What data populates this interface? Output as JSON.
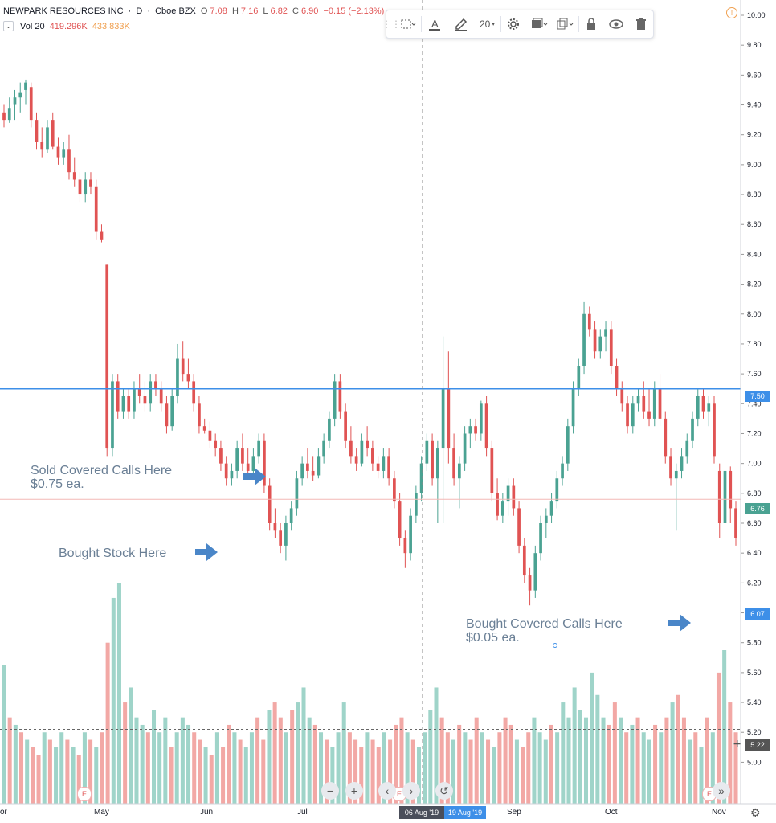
{
  "header": {
    "symbol": "NEWPARK RESOURCES INC",
    "interval": "D",
    "exchange": "Cboe BZX",
    "open_label": "O",
    "open": "7.08",
    "high_label": "H",
    "high": "7.16",
    "low_label": "L",
    "low": "6.82",
    "close_label": "C",
    "close": "6.90",
    "change": "−0.15 (−2.13%)"
  },
  "volume_legend": {
    "label": "Vol 20",
    "value": "419.296K",
    "ma_value": "433.833K"
  },
  "toolbar": {
    "font_size": "20"
  },
  "annotations": {
    "sold_line1": "Sold Covered Calls Here",
    "sold_line2": "$0.75 ea.",
    "bought_stock": "Bought Stock Here",
    "bought_calls_line1": "Bought Covered Calls Here",
    "bought_calls_line2": "$0.05 ea."
  },
  "price_labels": {
    "hline": "7.50",
    "last": "6.76",
    "cursor": "6.07",
    "volume_line": "5.22"
  },
  "x_axis": {
    "labels": [
      "or",
      "May",
      "Jun",
      "Jul",
      "Sep",
      "Oct",
      "Nov"
    ],
    "crosshair_date": "06 Aug '19",
    "range_end_date": "19 Aug '19"
  },
  "nav": {
    "zoom_out": "−",
    "zoom_in": "+",
    "scroll_left": "‹",
    "scroll_right": "›",
    "reset": "↺",
    "go_latest": "»"
  },
  "earnings_badge": "E",
  "colors": {
    "up": "#4aa292",
    "down": "#e05353",
    "up_vol": "#9fd4c9",
    "down_vol": "#f2a8a5",
    "hline": "#3d8fe8",
    "accent": "#2962ff"
  },
  "chart_data": {
    "type": "candlestick",
    "symbol": "NEWPARK RESOURCES INC",
    "y_axis": {
      "min": 4.9,
      "max": 10.0,
      "ticks": [
        "10.00",
        "9.80",
        "9.60",
        "9.40",
        "9.20",
        "9.00",
        "8.80",
        "8.60",
        "8.40",
        "8.20",
        "8.00",
        "7.80",
        "7.60",
        "7.40",
        "7.20",
        "7.00",
        "6.80",
        "6.60",
        "6.40",
        "6.20",
        "6.00",
        "5.80",
        "5.60",
        "5.40",
        "5.20",
        "5.00"
      ]
    },
    "horizontal_line": 7.5,
    "last_price": 6.76,
    "candles": [
      [
        9.35,
        9.4,
        9.25,
        9.3
      ],
      [
        9.3,
        9.45,
        9.28,
        9.38
      ],
      [
        9.4,
        9.5,
        9.3,
        9.45
      ],
      [
        9.45,
        9.55,
        9.35,
        9.48
      ],
      [
        9.5,
        9.57,
        9.4,
        9.55
      ],
      [
        9.52,
        9.55,
        9.25,
        9.3
      ],
      [
        9.3,
        9.35,
        9.1,
        9.15
      ],
      [
        9.15,
        9.25,
        9.05,
        9.1
      ],
      [
        9.1,
        9.3,
        9.08,
        9.25
      ],
      [
        9.3,
        9.35,
        9.1,
        9.12
      ],
      [
        9.12,
        9.18,
        9.0,
        9.05
      ],
      [
        9.05,
        9.15,
        9.0,
        9.1
      ],
      [
        9.1,
        9.2,
        8.9,
        8.95
      ],
      [
        8.95,
        9.05,
        8.85,
        8.9
      ],
      [
        8.9,
        8.95,
        8.75,
        8.8
      ],
      [
        8.8,
        8.95,
        8.75,
        8.9
      ],
      [
        8.9,
        8.95,
        8.8,
        8.85
      ],
      [
        8.85,
        8.9,
        8.5,
        8.55
      ],
      [
        8.55,
        8.6,
        8.48,
        8.5
      ],
      [
        8.33,
        8.33,
        7.05,
        7.1
      ],
      [
        7.1,
        7.6,
        7.05,
        7.55
      ],
      [
        7.55,
        7.6,
        7.3,
        7.35
      ],
      [
        7.35,
        7.5,
        7.3,
        7.45
      ],
      [
        7.45,
        7.5,
        7.3,
        7.35
      ],
      [
        7.35,
        7.55,
        7.3,
        7.5
      ],
      [
        7.5,
        7.6,
        7.4,
        7.45
      ],
      [
        7.45,
        7.55,
        7.35,
        7.4
      ],
      [
        7.4,
        7.6,
        7.35,
        7.55
      ],
      [
        7.55,
        7.6,
        7.45,
        7.5
      ],
      [
        7.5,
        7.55,
        7.35,
        7.4
      ],
      [
        7.4,
        7.45,
        7.2,
        7.25
      ],
      [
        7.25,
        7.5,
        7.22,
        7.45
      ],
      [
        7.45,
        7.8,
        7.4,
        7.7
      ],
      [
        7.7,
        7.82,
        7.55,
        7.6
      ],
      [
        7.6,
        7.7,
        7.5,
        7.55
      ],
      [
        7.55,
        7.6,
        7.35,
        7.4
      ],
      [
        7.4,
        7.45,
        7.2,
        7.25
      ],
      [
        7.25,
        7.3,
        7.2,
        7.22
      ],
      [
        7.22,
        7.28,
        7.1,
        7.15
      ],
      [
        7.15,
        7.2,
        7.05,
        7.1
      ],
      [
        7.1,
        7.15,
        6.95,
        7.0
      ],
      [
        7.0,
        7.05,
        6.85,
        6.9
      ],
      [
        6.9,
        7.0,
        6.85,
        6.95
      ],
      [
        6.95,
        7.15,
        6.9,
        7.1
      ],
      [
        7.1,
        7.2,
        6.95,
        7.0
      ],
      [
        7.0,
        7.1,
        6.9,
        6.95
      ],
      [
        6.95,
        7.1,
        6.9,
        7.05
      ],
      [
        7.05,
        7.2,
        7.0,
        7.15
      ],
      [
        7.15,
        7.2,
        6.8,
        6.85
      ],
      [
        6.85,
        6.9,
        6.55,
        6.6
      ],
      [
        6.6,
        6.7,
        6.5,
        6.55
      ],
      [
        6.55,
        6.6,
        6.4,
        6.45
      ],
      [
        6.45,
        6.65,
        6.35,
        6.6
      ],
      [
        6.6,
        6.75,
        6.55,
        6.7
      ],
      [
        6.7,
        6.95,
        6.65,
        6.9
      ],
      [
        6.9,
        7.05,
        6.85,
        7.0
      ],
      [
        7.0,
        7.1,
        6.9,
        6.95
      ],
      [
        6.95,
        7.05,
        6.88,
        6.92
      ],
      [
        6.92,
        7.1,
        6.9,
        7.05
      ],
      [
        7.05,
        7.2,
        7.0,
        7.15
      ],
      [
        7.15,
        7.35,
        7.1,
        7.3
      ],
      [
        7.3,
        7.6,
        7.25,
        7.55
      ],
      [
        7.55,
        7.6,
        7.3,
        7.35
      ],
      [
        7.35,
        7.4,
        7.1,
        7.15
      ],
      [
        7.15,
        7.25,
        7.0,
        7.05
      ],
      [
        7.05,
        7.1,
        6.95,
        7.0
      ],
      [
        7.0,
        7.2,
        6.98,
        7.15
      ],
      [
        7.15,
        7.25,
        7.05,
        7.1
      ],
      [
        7.1,
        7.15,
        6.95,
        7.0
      ],
      [
        7.0,
        7.05,
        6.9,
        6.95
      ],
      [
        6.95,
        7.1,
        6.9,
        7.05
      ],
      [
        7.05,
        7.1,
        6.85,
        6.9
      ],
      [
        6.9,
        6.95,
        6.7,
        6.75
      ],
      [
        6.75,
        6.8,
        6.45,
        6.5
      ],
      [
        6.5,
        6.55,
        6.3,
        6.4
      ],
      [
        6.4,
        6.7,
        6.35,
        6.65
      ],
      [
        6.65,
        6.85,
        6.6,
        6.8
      ],
      [
        6.8,
        7.05,
        6.75,
        7.0
      ],
      [
        7.0,
        7.2,
        6.95,
        7.15
      ],
      [
        7.15,
        7.2,
        6.85,
        6.9
      ],
      [
        6.9,
        7.15,
        6.6,
        7.1
      ],
      [
        7.1,
        7.85,
        6.6,
        7.5
      ],
      [
        7.5,
        7.75,
        7.0,
        7.1
      ],
      [
        7.1,
        7.2,
        6.85,
        6.9
      ],
      [
        6.9,
        7.05,
        6.7,
        7.0
      ],
      [
        7.0,
        7.25,
        6.95,
        7.2
      ],
      [
        7.2,
        7.3,
        7.1,
        7.25
      ],
      [
        7.25,
        7.3,
        7.15,
        7.2
      ],
      [
        7.2,
        7.42,
        7.15,
        7.4
      ],
      [
        7.4,
        7.45,
        7.05,
        7.1
      ],
      [
        7.1,
        7.15,
        6.75,
        6.8
      ],
      [
        6.8,
        6.9,
        6.62,
        6.65
      ],
      [
        6.65,
        6.8,
        6.6,
        6.75
      ],
      [
        6.75,
        6.9,
        6.65,
        6.85
      ],
      [
        6.85,
        6.9,
        6.65,
        6.7
      ],
      [
        6.7,
        6.75,
        6.4,
        6.45
      ],
      [
        6.45,
        6.5,
        6.2,
        6.25
      ],
      [
        6.25,
        6.3,
        6.05,
        6.15
      ],
      [
        6.15,
        6.45,
        6.1,
        6.4
      ],
      [
        6.4,
        6.65,
        6.35,
        6.6
      ],
      [
        6.6,
        6.7,
        6.5,
        6.65
      ],
      [
        6.65,
        6.8,
        6.6,
        6.75
      ],
      [
        6.75,
        6.95,
        6.7,
        6.9
      ],
      [
        6.9,
        7.05,
        6.85,
        7.0
      ],
      [
        7.0,
        7.3,
        6.95,
        7.25
      ],
      [
        7.25,
        7.55,
        7.2,
        7.5
      ],
      [
        7.5,
        7.7,
        7.45,
        7.65
      ],
      [
        7.65,
        8.08,
        7.6,
        8.0
      ],
      [
        8.0,
        8.05,
        7.85,
        7.9
      ],
      [
        7.9,
        7.95,
        7.7,
        7.75
      ],
      [
        7.75,
        7.9,
        7.7,
        7.85
      ],
      [
        7.85,
        7.95,
        7.75,
        7.9
      ],
      [
        7.9,
        7.95,
        7.6,
        7.65
      ],
      [
        7.65,
        7.7,
        7.45,
        7.5
      ],
      [
        7.5,
        7.55,
        7.35,
        7.4
      ],
      [
        7.4,
        7.45,
        7.2,
        7.25
      ],
      [
        7.25,
        7.45,
        7.2,
        7.4
      ],
      [
        7.4,
        7.5,
        7.35,
        7.45
      ],
      [
        7.45,
        7.55,
        7.3,
        7.35
      ],
      [
        7.35,
        7.5,
        7.25,
        7.3
      ],
      [
        7.3,
        7.55,
        7.25,
        7.5
      ],
      [
        7.5,
        7.6,
        7.25,
        7.3
      ],
      [
        7.3,
        7.35,
        7.0,
        7.05
      ],
      [
        7.05,
        7.1,
        6.85,
        6.9
      ],
      [
        6.9,
        7.0,
        6.55,
        6.95
      ],
      [
        6.95,
        7.1,
        6.9,
        7.05
      ],
      [
        7.05,
        7.2,
        7.0,
        7.15
      ],
      [
        7.15,
        7.35,
        7.1,
        7.3
      ],
      [
        7.3,
        7.5,
        7.25,
        7.45
      ],
      [
        7.45,
        7.5,
        7.3,
        7.35
      ],
      [
        7.35,
        7.45,
        7.25,
        7.4
      ],
      [
        7.4,
        7.45,
        7.0,
        7.05
      ],
      [
        6.95,
        7.0,
        6.5,
        6.6
      ],
      [
        6.6,
        6.98,
        6.55,
        6.95
      ],
      [
        6.95,
        6.98,
        6.6,
        6.7
      ],
      [
        6.7,
        6.75,
        6.45,
        6.5
      ]
    ],
    "volume": [
      [
        5.65,
        "up"
      ],
      [
        5.3,
        "down"
      ],
      [
        5.25,
        "up"
      ],
      [
        5.2,
        "down"
      ],
      [
        5.15,
        "up"
      ],
      [
        5.1,
        "down"
      ],
      [
        5.05,
        "down"
      ],
      [
        5.2,
        "up"
      ],
      [
        5.15,
        "down"
      ],
      [
        5.1,
        "up"
      ],
      [
        5.2,
        "up"
      ],
      [
        5.15,
        "down"
      ],
      [
        5.1,
        "up"
      ],
      [
        5.05,
        "down"
      ],
      [
        5.2,
        "up"
      ],
      [
        5.15,
        "down"
      ],
      [
        5.1,
        "up"
      ],
      [
        5.2,
        "down"
      ],
      [
        5.8,
        "down"
      ],
      [
        6.1,
        "up"
      ],
      [
        6.2,
        "up"
      ],
      [
        5.4,
        "down"
      ],
      [
        5.5,
        "up"
      ],
      [
        5.3,
        "up"
      ],
      [
        5.25,
        "up"
      ],
      [
        5.2,
        "down"
      ],
      [
        5.35,
        "up"
      ],
      [
        5.2,
        "up"
      ],
      [
        5.3,
        "up"
      ],
      [
        5.1,
        "down"
      ],
      [
        5.2,
        "up"
      ],
      [
        5.3,
        "up"
      ],
      [
        5.25,
        "up"
      ],
      [
        5.2,
        "down"
      ],
      [
        5.15,
        "down"
      ],
      [
        5.1,
        "up"
      ],
      [
        5.05,
        "down"
      ],
      [
        5.2,
        "up"
      ],
      [
        5.1,
        "down"
      ],
      [
        5.25,
        "down"
      ],
      [
        5.2,
        "up"
      ],
      [
        5.15,
        "down"
      ],
      [
        5.1,
        "up"
      ],
      [
        5.2,
        "up"
      ],
      [
        5.3,
        "down"
      ],
      [
        5.15,
        "down"
      ],
      [
        5.35,
        "up"
      ],
      [
        5.4,
        "down"
      ],
      [
        5.3,
        "down"
      ],
      [
        5.2,
        "up"
      ],
      [
        5.35,
        "down"
      ],
      [
        5.4,
        "up"
      ],
      [
        5.5,
        "up"
      ],
      [
        5.3,
        "up"
      ],
      [
        5.25,
        "down"
      ],
      [
        5.2,
        "up"
      ],
      [
        5.15,
        "down"
      ],
      [
        5.1,
        "up"
      ],
      [
        5.2,
        "up"
      ],
      [
        5.4,
        "up"
      ],
      [
        5.2,
        "down"
      ],
      [
        5.15,
        "down"
      ],
      [
        5.1,
        "down"
      ],
      [
        5.2,
        "up"
      ],
      [
        5.15,
        "down"
      ],
      [
        5.1,
        "down"
      ],
      [
        5.2,
        "up"
      ],
      [
        5.15,
        "down"
      ],
      [
        5.25,
        "down"
      ],
      [
        5.3,
        "down"
      ],
      [
        5.2,
        "up"
      ],
      [
        5.15,
        "down"
      ],
      [
        5.1,
        "up"
      ],
      [
        5.2,
        "up"
      ],
      [
        5.35,
        "up"
      ],
      [
        5.5,
        "up"
      ],
      [
        5.3,
        "down"
      ],
      [
        5.2,
        "down"
      ],
      [
        5.15,
        "up"
      ],
      [
        5.25,
        "down"
      ],
      [
        5.2,
        "up"
      ],
      [
        5.15,
        "down"
      ],
      [
        5.3,
        "down"
      ],
      [
        5.2,
        "up"
      ],
      [
        5.15,
        "down"
      ],
      [
        5.1,
        "up"
      ],
      [
        5.2,
        "down"
      ],
      [
        5.3,
        "down"
      ],
      [
        5.25,
        "down"
      ],
      [
        5.15,
        "up"
      ],
      [
        5.1,
        "down"
      ],
      [
        5.2,
        "down"
      ],
      [
        5.3,
        "up"
      ],
      [
        5.2,
        "up"
      ],
      [
        5.15,
        "up"
      ],
      [
        5.25,
        "down"
      ],
      [
        5.2,
        "up"
      ],
      [
        5.4,
        "up"
      ],
      [
        5.3,
        "up"
      ],
      [
        5.5,
        "up"
      ],
      [
        5.35,
        "up"
      ],
      [
        5.3,
        "up"
      ],
      [
        5.6,
        "up"
      ],
      [
        5.45,
        "up"
      ],
      [
        5.3,
        "up"
      ],
      [
        5.25,
        "down"
      ],
      [
        5.4,
        "down"
      ],
      [
        5.3,
        "up"
      ],
      [
        5.2,
        "down"
      ],
      [
        5.25,
        "up"
      ],
      [
        5.3,
        "down"
      ],
      [
        5.2,
        "up"
      ],
      [
        5.15,
        "up"
      ],
      [
        5.25,
        "down"
      ],
      [
        5.2,
        "up"
      ],
      [
        5.3,
        "down"
      ],
      [
        5.4,
        "up"
      ],
      [
        5.45,
        "down"
      ],
      [
        5.3,
        "down"
      ],
      [
        5.15,
        "up"
      ],
      [
        5.2,
        "down"
      ],
      [
        5.1,
        "up"
      ],
      [
        5.3,
        "down"
      ],
      [
        5.2,
        "up"
      ],
      [
        5.6,
        "down"
      ],
      [
        5.75,
        "up"
      ],
      [
        5.4,
        "down"
      ],
      [
        5.2,
        "down"
      ]
    ]
  }
}
